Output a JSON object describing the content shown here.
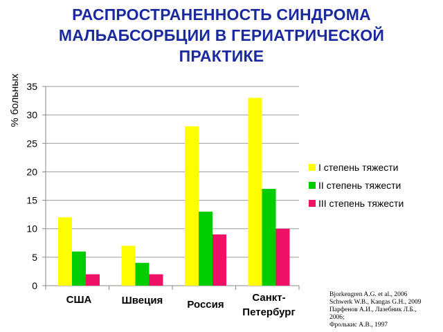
{
  "title_lines": [
    "РАСПРОСТРАНЕННОСТЬ СИНДРОМА",
    "МАЛЬАБСОРБЦИИ В ГЕРИАТРИЧЕСКОЙ",
    "ПРАКТИКЕ"
  ],
  "references": [
    "Bjorkengren A.G. et al., 2006",
    "Schwerk W.B., Kangas G.H., 2009",
    "Парфенов А.И., Лазебник Л.Б.,",
    "2006;",
    "Фролькис А.В., 1997"
  ],
  "chart_data": {
    "type": "bar",
    "title": "РАСПРОСТРАНЕННОСТЬ СИНДРОМА МАЛЬАБСОРБЦИИ В ГЕРИАТРИЧЕСКОЙ ПРАКТИКЕ",
    "ylabel": "% больных",
    "xlabel": "",
    "ylim": [
      0,
      35
    ],
    "yticks": [
      0,
      5,
      10,
      15,
      20,
      25,
      30,
      35
    ],
    "grid": true,
    "legend_position": "right",
    "categories": [
      "США",
      "Швеция",
      "Россия",
      "Санкт-\nПетербург"
    ],
    "series": [
      {
        "name": "I степень тяжести",
        "color": "#ffff00",
        "values": [
          12,
          7,
          28,
          33
        ]
      },
      {
        "name": "II степень тяжести",
        "color": "#00cc00",
        "values": [
          6,
          4,
          13,
          17
        ]
      },
      {
        "name": "III степень тяжести",
        "color": "#ee1166",
        "values": [
          2,
          2,
          9,
          10
        ]
      }
    ]
  }
}
